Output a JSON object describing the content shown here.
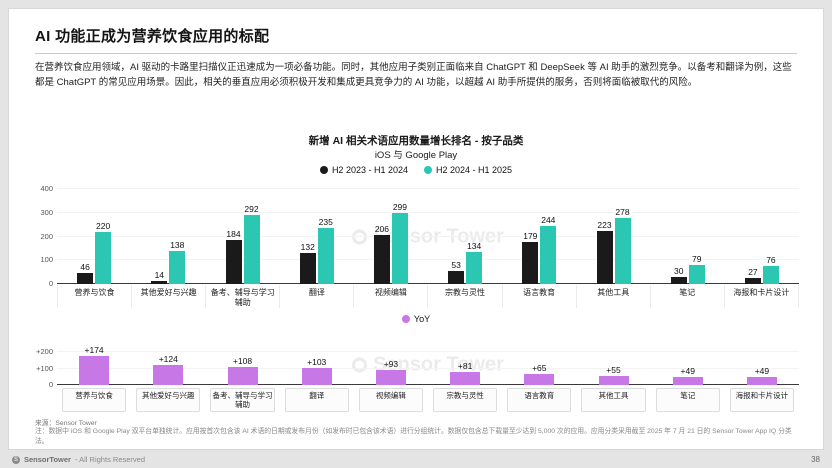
{
  "slide": {
    "title": "AI 功能正成为营养饮食应用的标配",
    "body": "在营养饮食应用领域，AI 驱动的卡路里扫描仪正迅速成为一项必备功能。同时，其他应用子类别正面临来自 ChatGPT 和 DeepSeek 等 AI 助手的激烈竞争。以备考和翻译为例，这些都是 ChatGPT 的常见应用场景。因此，相关的垂直应用必须积极开发和集成更具竞争力的 AI 功能，以超越 AI 助手所提供的服务，否则将面临被取代的风险。",
    "source": "来源：Sensor Tower",
    "note": "注：数据中 iOS 和 Google Play 双平台单独统计。应用按首次包含该 AI 术语的日期或发布月份（如发布时已包含该术语）进行分组统计。数据仅包含总下载量至少达到 5,000 次的应用。应用分类采用截至 2025 年 7 月 21 日的 Sensor Tower App IQ 分类法。",
    "footer": {
      "brand": "SensorTower",
      "rights": "- All Rights Reserved",
      "page": "38"
    }
  },
  "chart_data": [
    {
      "type": "bar",
      "title": "新增 AI 相关术语应用数量增长排名 - 按子品类",
      "subtitle": "iOS 与 Google Play",
      "categories": [
        "营养与饮食",
        "其他爱好与兴趣",
        "备考、辅导与学习辅助",
        "翻译",
        "视频编辑",
        "宗教与灵性",
        "语言教育",
        "其他工具",
        "笔记",
        "海报和卡片设计"
      ],
      "series": [
        {
          "name": "H2 2023 - H1 2024",
          "color": "#1a1a1a",
          "values": [
            46,
            14,
            184,
            132,
            206,
            53,
            179,
            223,
            30,
            27
          ]
        },
        {
          "name": "H2 2024 - H1 2025",
          "color": "#2cc7b2",
          "values": [
            220,
            138,
            292,
            235,
            299,
            134,
            244,
            278,
            79,
            76
          ]
        }
      ],
      "ylim": [
        0,
        400
      ],
      "yticks": [
        0,
        100,
        200,
        300,
        400
      ],
      "legend_position": "top",
      "grid": false
    },
    {
      "type": "bar",
      "legend": "YoY",
      "color": "#c778e6",
      "categories": [
        "营养与饮食",
        "其他爱好与兴趣",
        "备考、辅导与学习辅助",
        "翻译",
        "视频编辑",
        "宗教与灵性",
        "语言教育",
        "其他工具",
        "笔记",
        "海报和卡片设计"
      ],
      "values": [
        174,
        124,
        108,
        103,
        93,
        81,
        65,
        55,
        49,
        49
      ],
      "labels": [
        "+174",
        "+124",
        "+108",
        "+103",
        "+93",
        "+81",
        "+65",
        "+55",
        "+49",
        "+49"
      ],
      "ylim": [
        0,
        250
      ],
      "yticks": [
        {
          "label": "+200",
          "v": 200
        },
        {
          "label": "+100",
          "v": 100
        },
        {
          "label": "0",
          "v": 0
        }
      ],
      "grid": false
    }
  ]
}
